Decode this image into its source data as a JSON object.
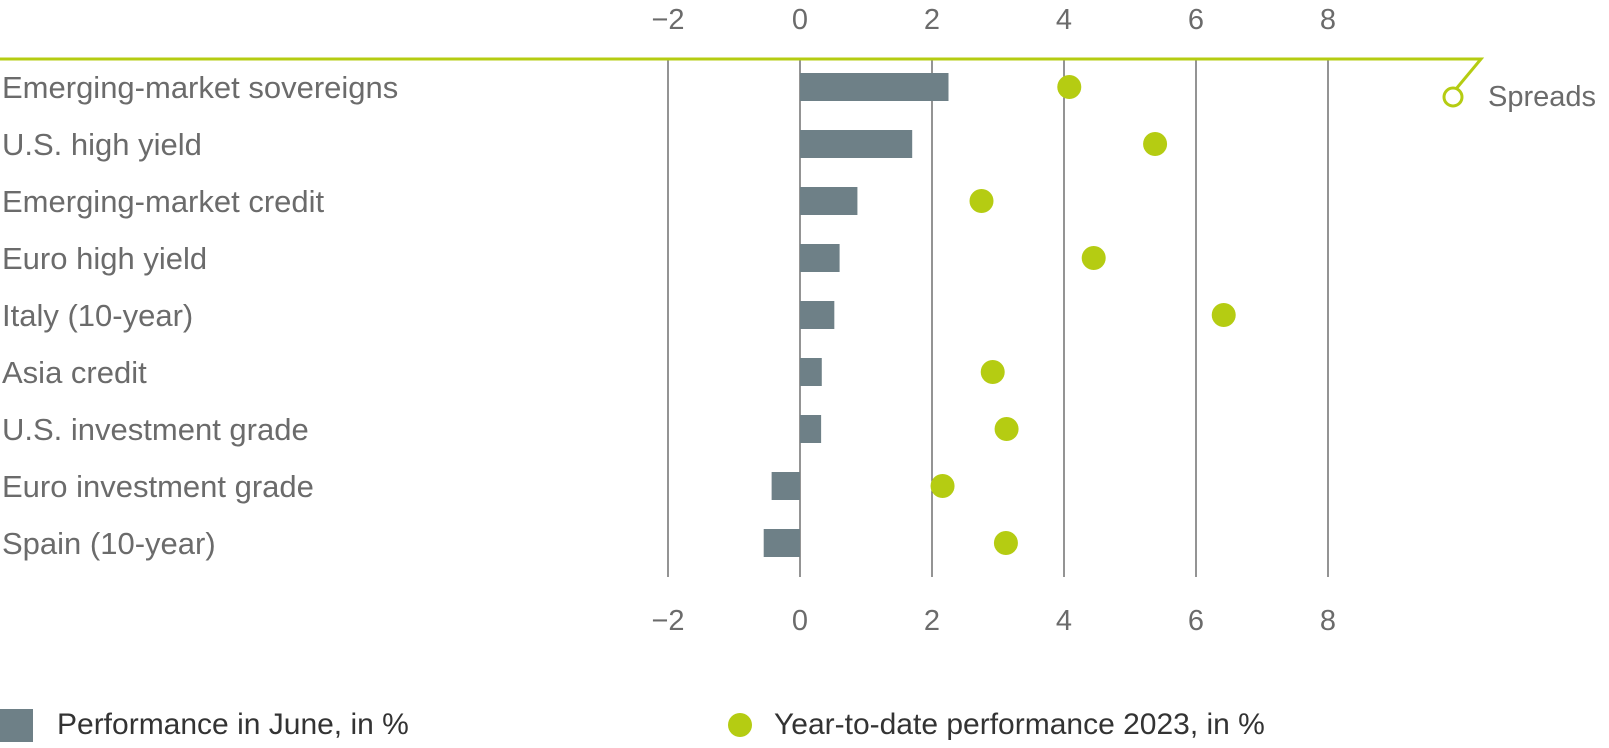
{
  "chart_data": {
    "type": "bar",
    "orientation": "horizontal",
    "categories": [
      "Emerging-market sovereigns",
      "U.S. high yield",
      "Emerging-market credit",
      "Euro high yield",
      "Italy (10-year)",
      "Asia credit",
      "U.S. investment grade",
      "Euro investment grade",
      "Spain (10-year)"
    ],
    "series": [
      {
        "name": "Performance in June, in %",
        "mark": "bar",
        "color": "#6e8087",
        "values": [
          2.25,
          1.7,
          0.87,
          0.6,
          0.52,
          0.33,
          0.32,
          -0.43,
          -0.55
        ]
      },
      {
        "name": "Year-to-date performance 2023, in %",
        "mark": "dot",
        "color": "#b5cc12",
        "values": [
          4.08,
          5.38,
          2.75,
          4.45,
          6.42,
          2.92,
          3.13,
          2.16,
          3.12
        ]
      }
    ],
    "xlim": [
      -2,
      10
    ],
    "xticks": [
      -2,
      0,
      2,
      4,
      6,
      8
    ],
    "xtick_labels": [
      "−2",
      "0",
      "2",
      "4",
      "6",
      "8"
    ],
    "grid": "vertical",
    "group_label": "Spreads",
    "legend_position": "bottom"
  },
  "legend": {
    "bar_label": "Performance in June, in %",
    "dot_label": "Year-to-date performance 2023, in %"
  },
  "colors": {
    "bar": "#6e8087",
    "dot": "#b5cc12",
    "grid": "#5a5a5a",
    "text": "#6b6b6b"
  }
}
